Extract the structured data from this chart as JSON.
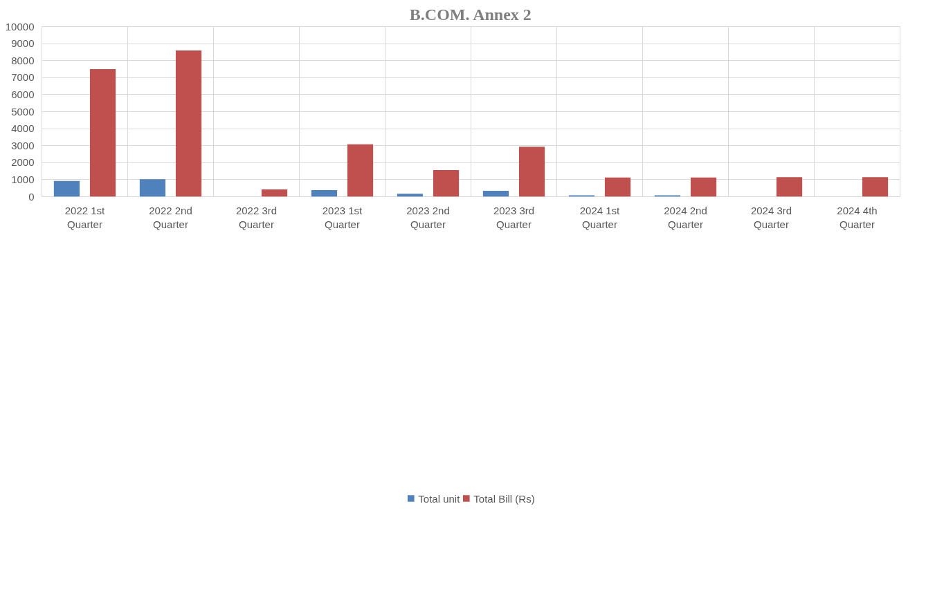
{
  "chart_data": {
    "type": "bar",
    "title": "B.COM. Annex 2",
    "categories": [
      "2022 1st Quarter",
      "2022 2nd Quarter",
      "2022 3rd Quarter",
      "2023 1st Quarter",
      "2023 2nd Quarter",
      "2023 3rd Quarter",
      "2024 1st Quarter",
      "2024 2nd Quarter",
      "2024 3rd Quarter",
      "2024 4th Quarter"
    ],
    "series": [
      {
        "name": "Total unit",
        "color": "#4f81bd",
        "values": [
          920,
          1030,
          0,
          390,
          170,
          350,
          80,
          80,
          0,
          0
        ]
      },
      {
        "name": "Total Bill (Rs)",
        "color": "#c0504d",
        "values": [
          7500,
          8600,
          430,
          3080,
          1570,
          2940,
          1130,
          1130,
          1150,
          1150
        ]
      }
    ],
    "ylim": [
      0,
      10000
    ],
    "yticks": [
      0,
      1000,
      2000,
      3000,
      4000,
      5000,
      6000,
      7000,
      8000,
      9000,
      10000
    ],
    "grid": true,
    "legend": "bottom"
  }
}
